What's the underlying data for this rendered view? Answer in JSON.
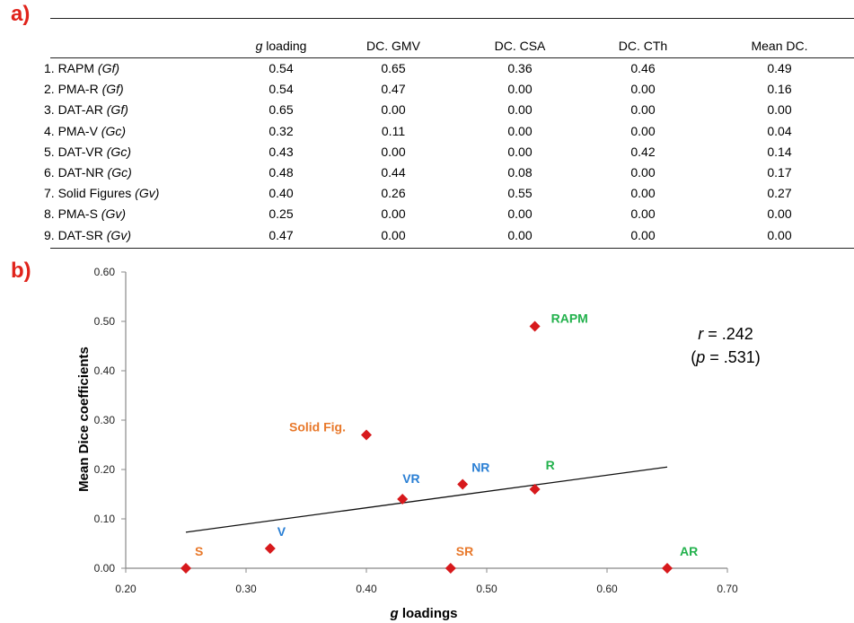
{
  "panel_a": {
    "label": "a)",
    "table": {
      "columns": [
        "g loading",
        "DC. GMV",
        "DC. CSA",
        "DC. CTh",
        "Mean DC."
      ],
      "rows": [
        {
          "label": "1. RAPM",
          "factor": "(Gf)",
          "values": [
            "0.54",
            "0.65",
            "0.36",
            "0.46",
            "0.49"
          ]
        },
        {
          "label": "2. PMA-R",
          "factor": "(Gf)",
          "values": [
            "0.54",
            "0.47",
            "0.00",
            "0.00",
            "0.16"
          ]
        },
        {
          "label": "3. DAT-AR",
          "factor": "(Gf)",
          "values": [
            "0.65",
            "0.00",
            "0.00",
            "0.00",
            "0.00"
          ]
        },
        {
          "label": "4. PMA-V",
          "factor": "(Gc)",
          "values": [
            "0.32",
            "0.11",
            "0.00",
            "0.00",
            "0.04"
          ]
        },
        {
          "label": "5. DAT-VR",
          "factor": "(Gc)",
          "values": [
            "0.43",
            "0.00",
            "0.00",
            "0.42",
            "0.14"
          ]
        },
        {
          "label": "6. DAT-NR",
          "factor": "(Gc)",
          "values": [
            "0.48",
            "0.44",
            "0.08",
            "0.00",
            "0.17"
          ]
        },
        {
          "label": "7. Solid Figures",
          "factor": "(Gv)",
          "values": [
            "0.40",
            "0.26",
            "0.55",
            "0.00",
            "0.27"
          ]
        },
        {
          "label": "8. PMA-S",
          "factor": "(Gv)",
          "values": [
            "0.25",
            "0.00",
            "0.00",
            "0.00",
            "0.00"
          ]
        },
        {
          "label": "9. DAT-SR",
          "factor": "(Gv)",
          "values": [
            "0.47",
            "0.00",
            "0.00",
            "0.00",
            "0.00"
          ]
        }
      ]
    }
  },
  "panel_b": {
    "label": "b)",
    "stat_r": "r = .242",
    "stat_p": "(p = .531)"
  },
  "chart_data": {
    "type": "scatter",
    "xlabel": "g loadings",
    "ylabel": "Mean Dice coefficients",
    "xlim": [
      0.2,
      0.7
    ],
    "ylim": [
      0.0,
      0.6
    ],
    "xticks": [
      "0.20",
      "0.30",
      "0.40",
      "0.50",
      "0.60",
      "0.70"
    ],
    "yticks": [
      "0.00",
      "0.10",
      "0.20",
      "0.30",
      "0.40",
      "0.50",
      "0.60"
    ],
    "grid": false,
    "marker_color": "#d7191c",
    "points": [
      {
        "label": "RAPM",
        "x": 0.54,
        "y": 0.49,
        "color": "#22b14c"
      },
      {
        "label": "R",
        "x": 0.54,
        "y": 0.16,
        "color": "#22b14c"
      },
      {
        "label": "AR",
        "x": 0.65,
        "y": 0.0,
        "color": "#22b14c"
      },
      {
        "label": "V",
        "x": 0.32,
        "y": 0.04,
        "color": "#2a7fd4"
      },
      {
        "label": "VR",
        "x": 0.43,
        "y": 0.14,
        "color": "#2a7fd4"
      },
      {
        "label": "NR",
        "x": 0.48,
        "y": 0.17,
        "color": "#2a7fd4"
      },
      {
        "label": "Solid Fig.",
        "x": 0.4,
        "y": 0.27,
        "color": "#e8782a"
      },
      {
        "label": "S",
        "x": 0.25,
        "y": 0.0,
        "color": "#e8782a"
      },
      {
        "label": "SR",
        "x": 0.47,
        "y": 0.0,
        "color": "#e8782a"
      }
    ],
    "trendline": {
      "x": [
        0.25,
        0.65
      ],
      "y": [
        0.073,
        0.205
      ]
    }
  }
}
